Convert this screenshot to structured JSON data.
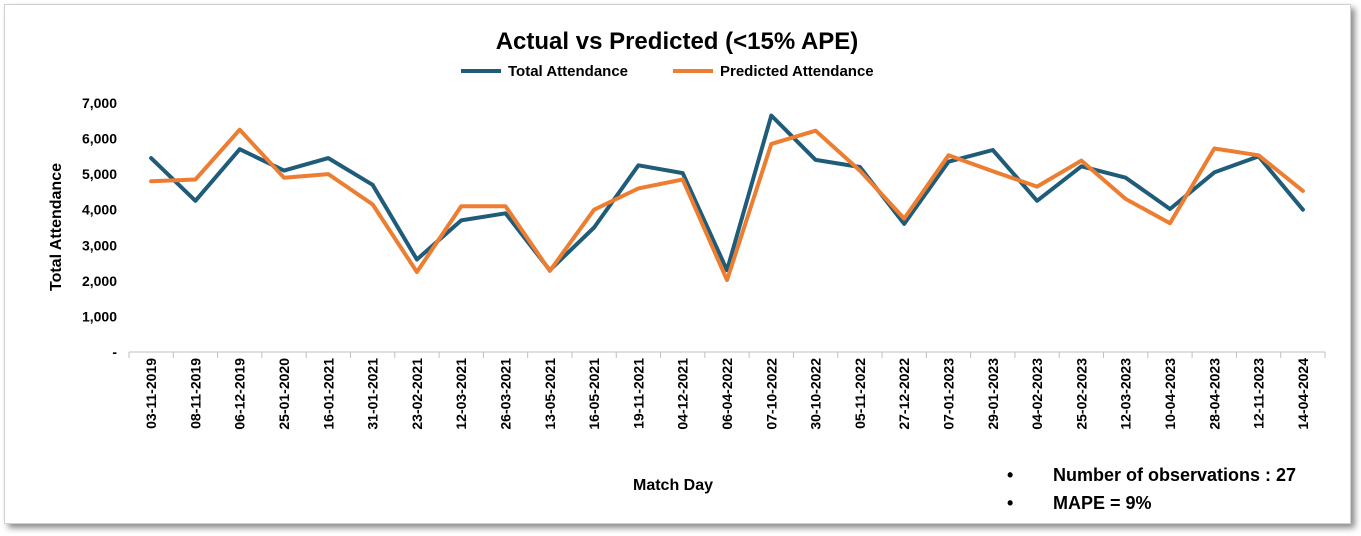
{
  "chart_data": {
    "type": "line",
    "title": "Actual vs Predicted (<15% APE)",
    "xlabel": "Match Day",
    "ylabel": "Total Attendance",
    "ylim": [
      0,
      7000
    ],
    "yticks": [
      {
        "value": 0,
        "label": "-"
      },
      {
        "value": 1000,
        "label": "1,000"
      },
      {
        "value": 2000,
        "label": "2,000"
      },
      {
        "value": 3000,
        "label": "3,000"
      },
      {
        "value": 4000,
        "label": "4,000"
      },
      {
        "value": 5000,
        "label": "5,000"
      },
      {
        "value": 6000,
        "label": "6,000"
      },
      {
        "value": 7000,
        "label": "7,000"
      }
    ],
    "grid": false,
    "legend_position": "top",
    "categories": [
      "03-11-2019",
      "08-11-2019",
      "06-12-2019",
      "25-01-2020",
      "16-01-2021",
      "31-01-2021",
      "23-02-2021",
      "12-03-2021",
      "26-03-2021",
      "13-05-2021",
      "16-05-2021",
      "19-11-2021",
      "04-12-2021",
      "06-04-2022",
      "07-10-2022",
      "30-10-2022",
      "05-11-2022",
      "27-12-2022",
      "07-01-2023",
      "29-01-2023",
      "04-02-2023",
      "25-02-2023",
      "12-03-2023",
      "10-04-2023",
      "28-04-2023",
      "12-11-2023",
      "14-04-2024"
    ],
    "series": [
      {
        "name": "Total Attendance",
        "color": "#1f5c7a",
        "values": [
          5450,
          4250,
          5700,
          5100,
          5450,
          4700,
          2600,
          3700,
          3900,
          2300,
          3500,
          5250,
          5030,
          2300,
          6650,
          5400,
          5200,
          3600,
          5350,
          5680,
          4250,
          5220,
          4900,
          4020,
          5050,
          5500,
          4000
        ]
      },
      {
        "name": "Predicted Attendance",
        "color": "#ed7d31",
        "values": [
          4800,
          4850,
          6250,
          4900,
          5000,
          4150,
          2250,
          4100,
          4100,
          2280,
          4000,
          4600,
          4850,
          2020,
          5850,
          6220,
          5100,
          3750,
          5530,
          5080,
          4650,
          5380,
          4300,
          3620,
          5720,
          5530,
          4530
        ]
      }
    ]
  },
  "notes": {
    "bullet": "•",
    "observations": "Number of observations : 27",
    "mape": "MAPE =  9%"
  }
}
